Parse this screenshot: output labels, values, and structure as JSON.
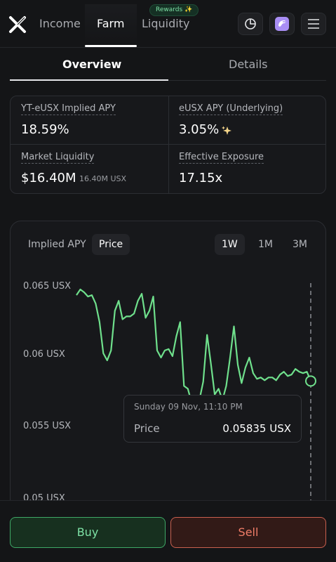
{
  "nav": {
    "items": [
      {
        "label": "Income",
        "active": false
      },
      {
        "label": "Farm",
        "active": true
      },
      {
        "label": "Liquidity",
        "active": false
      }
    ],
    "rewards_badge": "Rewards ✨",
    "icons": [
      "x-logo-icon",
      "pie-chart-icon",
      "wallet-app-icon",
      "menu-icon"
    ]
  },
  "subtabs": [
    {
      "label": "Overview",
      "active": true
    },
    {
      "label": "Details",
      "active": false
    }
  ],
  "stats": {
    "implied_apy": {
      "label": "YT-eUSX Implied APY",
      "value": "18.59%"
    },
    "underlying_apy": {
      "label": "eUSX APY (Underlying)",
      "value": "3.05%",
      "icon": "sparkle-icon"
    },
    "market_liquidity": {
      "label": "Market Liquidity",
      "value": "$16.40M",
      "sub": "16.40M USX"
    },
    "effective_exposure": {
      "label": "Effective Exposure",
      "value": "17.15x"
    }
  },
  "chart": {
    "metric_tabs": [
      {
        "label": "Implied APY",
        "active": false
      },
      {
        "label": "Price",
        "active": true
      }
    ],
    "range_tabs": [
      {
        "label": "1W",
        "active": true
      },
      {
        "label": "1M",
        "active": false
      },
      {
        "label": "3M",
        "active": false
      }
    ],
    "tooltip": {
      "date": "Sunday 09 Nov, 11:10 PM",
      "label": "Price",
      "value": "0.05835 USX"
    }
  },
  "chart_data": {
    "type": "line",
    "series": [
      {
        "values": [
          0.0644,
          0.0648,
          0.0646,
          0.0643,
          0.0644,
          0.0638,
          0.0625,
          0.0603,
          0.0598,
          0.0605,
          0.0633,
          0.064,
          0.0627,
          0.0629,
          0.0629,
          0.0631,
          0.064,
          0.0645,
          0.0628,
          0.0633,
          0.0643,
          0.0605,
          0.06,
          0.0605,
          0.0606,
          0.0601,
          0.0615,
          0.0625,
          0.058,
          0.0578,
          0.0568,
          0.0562,
          0.057,
          0.0583,
          0.0616,
          0.0596,
          0.0574,
          0.0578,
          0.057,
          0.058,
          0.06,
          0.0622,
          0.0595,
          0.0582,
          0.0593,
          0.06,
          0.0589,
          0.0585,
          0.0586,
          0.0584,
          0.0586,
          0.0586,
          0.0584,
          0.0588,
          0.059,
          0.0587,
          0.0588,
          0.0592,
          0.059,
          0.0589,
          0.059,
          0.05835
        ],
        "color": "#6fe08c"
      }
    ],
    "ylim": [
      0.05,
      0.065
    ],
    "ytick_labels": [
      "0.065 USX",
      "0.06 USX",
      "0.055 USX",
      "0.05 USX"
    ],
    "grid": false,
    "accent_color": "#6fe08c"
  },
  "actions": {
    "buy_label": "Buy",
    "sell_label": "Sell",
    "buy_color": "#7ee2a6",
    "sell_color": "#f07d68"
  }
}
